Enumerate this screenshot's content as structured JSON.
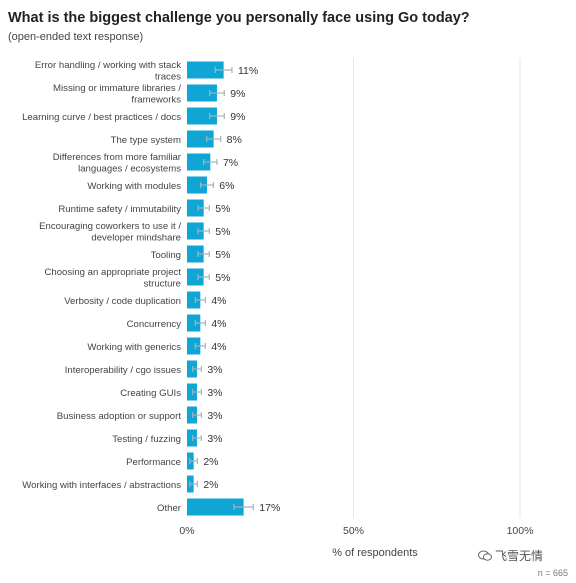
{
  "title": "What is the biggest challenge you personally face using Go today?",
  "subtitle": "(open-ended text response)",
  "n_label": "n = 665",
  "watermark": {
    "text": "飞雪无情",
    "icon": "chat-bubble-icon"
  },
  "colors": {
    "bar": "#0fa6d6",
    "errorbar": "#9fb5c2",
    "grid": "#e6e6e6",
    "text": "#333333"
  },
  "chart_data": {
    "type": "bar",
    "orientation": "horizontal",
    "xlabel": "% of respondents",
    "xlim": [
      0,
      100
    ],
    "xticks": [
      "0%",
      "50%",
      "100%"
    ],
    "grid": true,
    "categories": [
      "Error handling / working with stack traces",
      "Missing or immature libraries / frameworks",
      "Learning curve / best practices / docs",
      "The type system",
      "Differences from more familiar languages / ecosystems",
      "Working with modules",
      "Runtime safety / immutability",
      "Encouraging coworkers to use it / developer mindshare",
      "Tooling",
      "Choosing an appropriate project structure",
      "Verbosity / code duplication",
      "Concurrency",
      "Working with generics",
      "Interoperability / cgo issues",
      "Creating GUIs",
      "Business adoption or support",
      "Testing / fuzzing",
      "Performance",
      "Working with interfaces / abstractions",
      "Other"
    ],
    "category_lines": [
      [
        "Error handling / working with stack",
        "traces"
      ],
      [
        "Missing or immature libraries /",
        "frameworks"
      ],
      [
        "Learning curve / best practices / docs"
      ],
      [
        "The type system"
      ],
      [
        "Differences from more familiar",
        "languages / ecosystems"
      ],
      [
        "Working with modules"
      ],
      [
        "Runtime safety / immutability"
      ],
      [
        "Encouraging coworkers to use it /",
        "developer mindshare"
      ],
      [
        "Tooling"
      ],
      [
        "Choosing an appropriate project",
        "structure"
      ],
      [
        "Verbosity / code duplication"
      ],
      [
        "Concurrency"
      ],
      [
        "Working with generics"
      ],
      [
        "Interoperability / cgo issues"
      ],
      [
        "Creating GUIs"
      ],
      [
        "Business adoption or support"
      ],
      [
        "Testing / fuzzing"
      ],
      [
        "Performance"
      ],
      [
        "Working with interfaces / abstractions"
      ],
      [
        "Other"
      ]
    ],
    "values": [
      11,
      9,
      9,
      8,
      7,
      6,
      5,
      5,
      5,
      5,
      4,
      4,
      4,
      3,
      3,
      3,
      3,
      2,
      2,
      17
    ],
    "value_labels": [
      "11%",
      "9%",
      "9%",
      "8%",
      "7%",
      "6%",
      "5%",
      "5%",
      "5%",
      "5%",
      "4%",
      "4%",
      "4%",
      "3%",
      "3%",
      "3%",
      "3%",
      "2%",
      "2%",
      "17%"
    ],
    "error_margin": [
      2.5,
      2.2,
      2.2,
      2.1,
      2.0,
      1.9,
      1.7,
      1.7,
      1.7,
      1.7,
      1.5,
      1.5,
      1.5,
      1.3,
      1.3,
      1.3,
      1.3,
      1.1,
      1.1,
      2.9
    ]
  }
}
